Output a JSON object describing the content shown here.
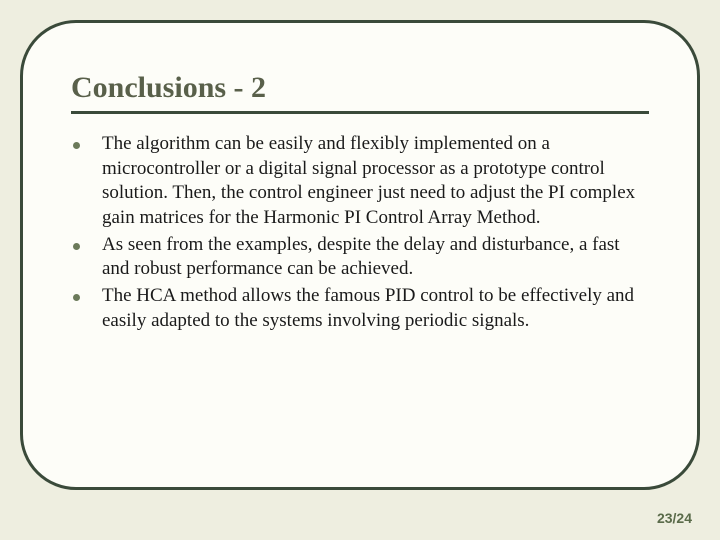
{
  "slide": {
    "title": "Conclusions - 2",
    "bullets": [
      "The algorithm can be easily and flexibly implemented on a microcontroller or a digital signal processor as a prototype control solution. Then, the control engineer just need to adjust the PI complex gain matrices for the Harmonic PI Control Array Method.",
      "As seen from the examples, despite the delay and disturbance, a fast and robust performance can be achieved.",
      "The HCA method allows the famous PID control to be effectively and easily adapted to the systems involving periodic signals."
    ],
    "page_number": "23/24"
  },
  "style": {
    "background_color": "#eeeee0",
    "frame_bg": "#fdfdf8",
    "frame_border_color": "#3a4a3a",
    "frame_border_width": 3,
    "frame_border_radius": 56,
    "title_color": "#59604a",
    "title_fontsize": 30,
    "rule_color": "#3a4a3a",
    "bullet_dot_color": "#6b7a5a",
    "body_fontsize": 19,
    "body_color": "#1a1a1a",
    "pagenum_color": "#5a6b4a",
    "pagenum_fontsize": 14
  }
}
